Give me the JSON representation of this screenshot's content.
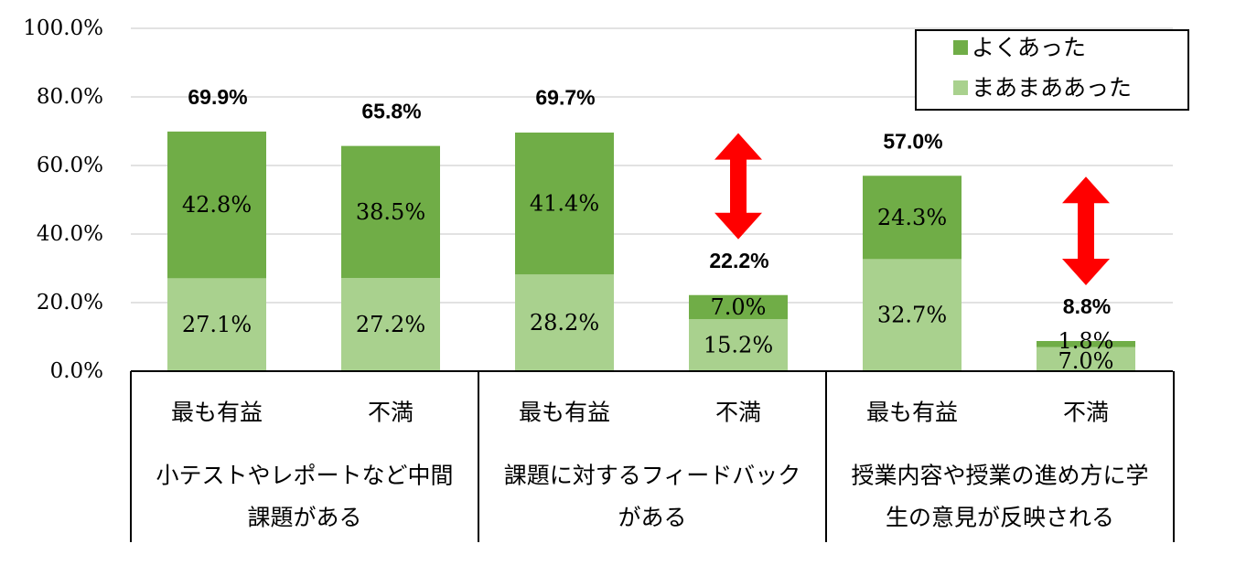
{
  "chart_data": {
    "type": "bar",
    "stacked": true,
    "y_ticks": [
      "0.0%",
      "20.0%",
      "40.0%",
      "60.0%",
      "80.0%",
      "100.0%"
    ],
    "ylim": [
      0,
      100
    ],
    "grid": true,
    "legend_position": "top-right",
    "categories": [
      "最も有益",
      "不満",
      "最も有益",
      "不満",
      "最も有益",
      "不満"
    ],
    "groups": [
      {
        "label_lines": [
          "小テストやレポートなど中間",
          "課題がある"
        ]
      },
      {
        "label_lines": [
          "課題に対するフィードバック",
          "がある"
        ]
      },
      {
        "label_lines": [
          "授業内容や授業の進め方に学",
          "生の意見が反映される"
        ]
      }
    ],
    "series": [
      {
        "name": "まあまああった",
        "color": "#a9d18e",
        "values": [
          27.1,
          27.2,
          28.2,
          15.2,
          32.7,
          7.0
        ],
        "labels": [
          "27.1%",
          "27.2%",
          "28.2%",
          "15.2%",
          "32.7%",
          "7.0%"
        ]
      },
      {
        "name": "よくあった",
        "color": "#70ad47",
        "values": [
          42.8,
          38.5,
          41.4,
          7.0,
          24.3,
          1.8
        ],
        "labels": [
          "42.8%",
          "38.5%",
          "41.4%",
          "7.0%",
          "24.3%",
          "1.8%"
        ]
      }
    ],
    "legend_order": [
      "よくあった",
      "まあまああった"
    ],
    "totals": [
      69.9,
      65.8,
      69.7,
      22.2,
      57.0,
      8.8
    ],
    "total_labels": [
      "69.9%",
      "65.8%",
      "69.7%",
      "22.2%",
      "57.0%",
      "8.8%"
    ],
    "annotations": [
      {
        "type": "double-arrow",
        "color": "#ff0000",
        "between_bars": [
          2,
          3
        ]
      },
      {
        "type": "double-arrow",
        "color": "#ff0000",
        "between_bars": [
          4,
          5
        ]
      }
    ]
  }
}
